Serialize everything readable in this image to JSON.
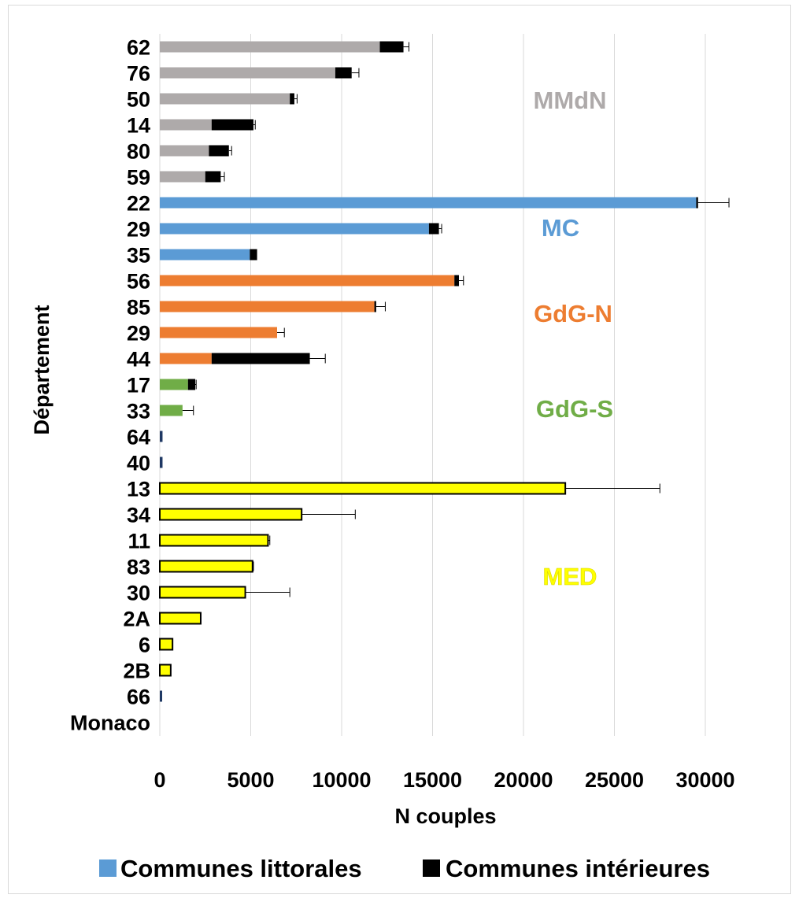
{
  "chart_data": {
    "type": "bar",
    "orientation": "horizontal",
    "stacked": true,
    "xlabel": "N couples",
    "ylabel": "Département",
    "xlim": [
      0,
      30000
    ],
    "xticks": [
      0,
      5000,
      10000,
      15000,
      20000,
      25000,
      30000
    ],
    "grid": "vertical",
    "legend_position": "bottom",
    "categories": [
      "62",
      "76",
      "50",
      "14",
      "80",
      "59",
      "22",
      "29",
      "35",
      "56",
      "85",
      "29",
      "44",
      "17",
      "33",
      "64",
      "40",
      "13",
      "34",
      "11",
      "83",
      "30",
      "2A",
      "6",
      "2B",
      "66",
      "Monaco"
    ],
    "groups": [
      "MMdN",
      "MMdN",
      "MMdN",
      "MMdN",
      "MMdN",
      "MMdN",
      "MC",
      "MC",
      "MC",
      "GdG-N",
      "GdG-N",
      "GdG-N",
      "GdG-N",
      "GdG-S",
      "GdG-S",
      "GdG-S",
      "GdG-S",
      "MED",
      "MED",
      "MED",
      "MED",
      "MED",
      "MED",
      "MED",
      "MED",
      "MED",
      "MED"
    ],
    "series": [
      {
        "name": "Communes littorales",
        "values": [
          12100,
          9650,
          7150,
          2850,
          2700,
          2500,
          29500,
          14800,
          4950,
          16200,
          11800,
          6450,
          2850,
          1550,
          1250,
          150,
          150,
          22300,
          7800,
          5950,
          5100,
          4700,
          2250,
          700,
          600,
          130,
          0
        ]
      },
      {
        "name": "Communes intérieures",
        "values": [
          1300,
          900,
          250,
          2300,
          1100,
          850,
          100,
          550,
          400,
          250,
          100,
          0,
          5400,
          400,
          0,
          0,
          0,
          0,
          0,
          0,
          0,
          0,
          0,
          0,
          0,
          0,
          0
        ]
      }
    ],
    "error_bars": [
      13700,
      10950,
      7550,
      5250,
      3950,
      3550,
      31300,
      15500,
      5350,
      16700,
      12400,
      6850,
      9100,
      2000,
      1850,
      150,
      150,
      27500,
      10750,
      6050,
      5150,
      7150,
      2250,
      700,
      600,
      130,
      0
    ],
    "group_labels": [
      {
        "text": "MMdN",
        "color": "#aeaaaa"
      },
      {
        "text": "MC",
        "color": "#5b9bd5"
      },
      {
        "text": "GdG-N",
        "color": "#ed7d31"
      },
      {
        "text": "GdG-S",
        "color": "#70ad47"
      },
      {
        "text": "MED",
        "color": "#ffff00"
      }
    ],
    "colors": {
      "MMdN": "#aeaaaa",
      "MC": "#5b9bd5",
      "GdG-N": "#ed7d31",
      "GdG-S": "#70ad47",
      "MED": "#ffff00",
      "interior": "#000000",
      "legend_littoral": "#5b9bd5",
      "legend_interior": "#000000",
      "grid": "#d9d9d9",
      "small_bar": "#1f3864"
    }
  }
}
